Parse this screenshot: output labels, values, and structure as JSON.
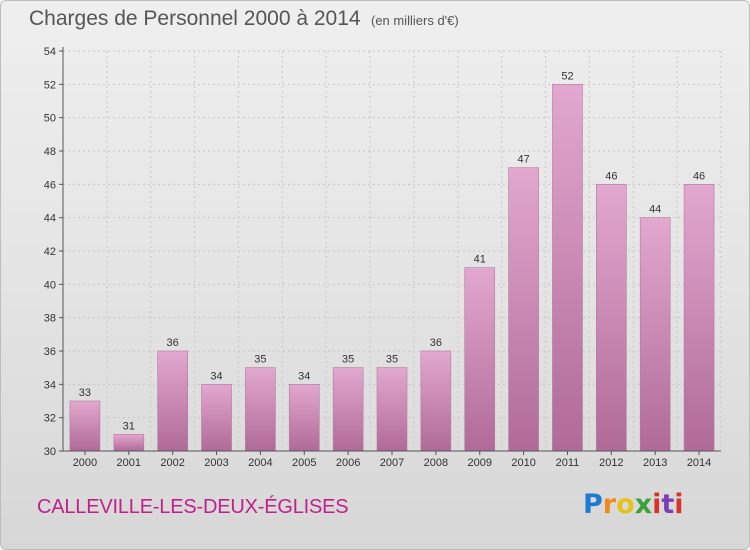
{
  "header": {
    "title": "Charges de Personnel 2000 à 2014",
    "subtitle": "(en milliers d'€)"
  },
  "footer": {
    "commune": "CALLEVILLE-LES-DEUX-ÉGLISES",
    "logo_letters": [
      "P",
      "r",
      "o",
      "x",
      "i",
      "t",
      "i"
    ]
  },
  "colors": {
    "bar_top": "#e2a8cf",
    "bar_bottom": "#b06a98",
    "commune_text": "#c0208a"
  },
  "chart_data": {
    "type": "bar",
    "title": "Charges de Personnel 2000 à 2014",
    "subtitle": "(en milliers d'€)",
    "categories": [
      "2000",
      "2001",
      "2002",
      "2003",
      "2004",
      "2005",
      "2006",
      "2007",
      "2008",
      "2009",
      "2010",
      "2011",
      "2012",
      "2013",
      "2014"
    ],
    "values": [
      33,
      31,
      36,
      34,
      35,
      34,
      35,
      35,
      36,
      41,
      47,
      52,
      46,
      44,
      46
    ],
    "ylim": [
      30,
      54
    ],
    "yticks": [
      30,
      32,
      34,
      36,
      38,
      40,
      42,
      44,
      46,
      48,
      50,
      52,
      54
    ],
    "grid": true,
    "legend": "none"
  }
}
